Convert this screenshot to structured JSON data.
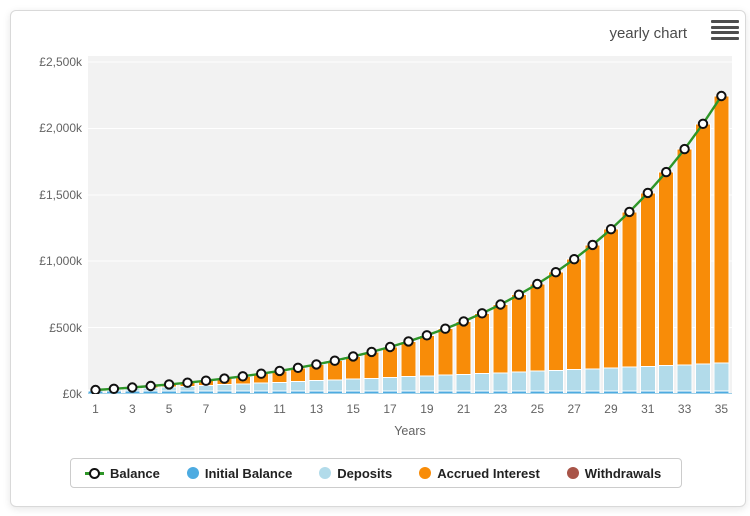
{
  "header": {
    "title": "yearly chart",
    "menu_icon": "hamburger-icon"
  },
  "chart_data": {
    "type": "bar",
    "subtype": "stacked-columns-with-line-overlay",
    "title": "",
    "xlabel": "Years",
    "ylabel": "",
    "unit": "GBP thousands",
    "ylim": [
      0,
      2500
    ],
    "grid": "horizontal-white-on-gray",
    "legend_position": "bottom",
    "x": [
      1,
      2,
      3,
      4,
      5,
      6,
      7,
      8,
      9,
      10,
      11,
      12,
      13,
      14,
      15,
      16,
      17,
      18,
      19,
      20,
      21,
      22,
      23,
      24,
      25,
      26,
      27,
      28,
      29,
      30,
      31,
      32,
      33,
      34,
      35
    ],
    "x_tick_labels": [
      "1",
      "3",
      "5",
      "7",
      "9",
      "11",
      "13",
      "15",
      "17",
      "19",
      "21",
      "23",
      "25",
      "27",
      "29",
      "31",
      "33",
      "35"
    ],
    "y_ticks": [
      {
        "value": 0,
        "label": "£0k"
      },
      {
        "value": 500,
        "label": "£500k"
      },
      {
        "value": 1000,
        "label": "£1,000k"
      },
      {
        "value": 1500,
        "label": "£1,500k"
      },
      {
        "value": 2000,
        "label": "£2,000k"
      },
      {
        "value": 2500,
        "label": "£2,500k"
      }
    ],
    "series": [
      {
        "name": "Balance",
        "type": "line",
        "color": "#2e9628",
        "marker": "white-circle-black-ring",
        "values": [
          30,
          39,
          49,
          60,
          72,
          85,
          100,
          116,
          133,
          153,
          174,
          197,
          223,
          251,
          283,
          317,
          354,
          396,
          442,
          492,
          547,
          608,
          674,
          748,
          828,
          917,
          1015,
          1123,
          1241,
          1371,
          1514,
          1671,
          1844,
          2035,
          2244
        ]
      },
      {
        "name": "Initial Balance",
        "type": "column",
        "color": "#4dabe1",
        "values": [
          22,
          22,
          22,
          22,
          22,
          22,
          22,
          22,
          22,
          22,
          22,
          22,
          22,
          22,
          22,
          22,
          22,
          22,
          22,
          22,
          22,
          22,
          22,
          22,
          22,
          22,
          22,
          22,
          22,
          22,
          22,
          22,
          22,
          22,
          22
        ]
      },
      {
        "name": "Deposits",
        "type": "column",
        "color": "#b2dbea",
        "values": [
          6,
          12,
          18,
          24,
          30,
          36,
          42,
          48,
          54,
          60,
          66,
          72,
          78,
          84,
          90,
          96,
          102,
          108,
          114,
          120,
          126,
          132,
          138,
          144,
          150,
          156,
          162,
          168,
          174,
          180,
          186,
          192,
          198,
          204,
          210
        ]
      },
      {
        "name": "Accrued Interest",
        "type": "column",
        "color": "#f88c08",
        "values": [
          2,
          5,
          9,
          14,
          20,
          27,
          36,
          46,
          57,
          71,
          86,
          103,
          123,
          145,
          171,
          199,
          230,
          266,
          306,
          350,
          399,
          454,
          514,
          582,
          656,
          739,
          831,
          933,
          1045,
          1169,
          1306,
          1457,
          1624,
          1809,
          2012
        ]
      },
      {
        "name": "Withdrawals",
        "type": "column",
        "color": "#a85448",
        "values": [
          0,
          0,
          0,
          0,
          0,
          0,
          0,
          0,
          0,
          0,
          0,
          0,
          0,
          0,
          0,
          0,
          0,
          0,
          0,
          0,
          0,
          0,
          0,
          0,
          0,
          0,
          0,
          0,
          0,
          0,
          0,
          0,
          0,
          0,
          0
        ]
      }
    ],
    "colors": {
      "plot_background": "#f2f2f2",
      "gridline": "#ffffff",
      "axis_text": "#636363",
      "baseline": "#9fd0e8",
      "marker_fill": "#ffffff",
      "marker_stroke": "#111111"
    }
  }
}
